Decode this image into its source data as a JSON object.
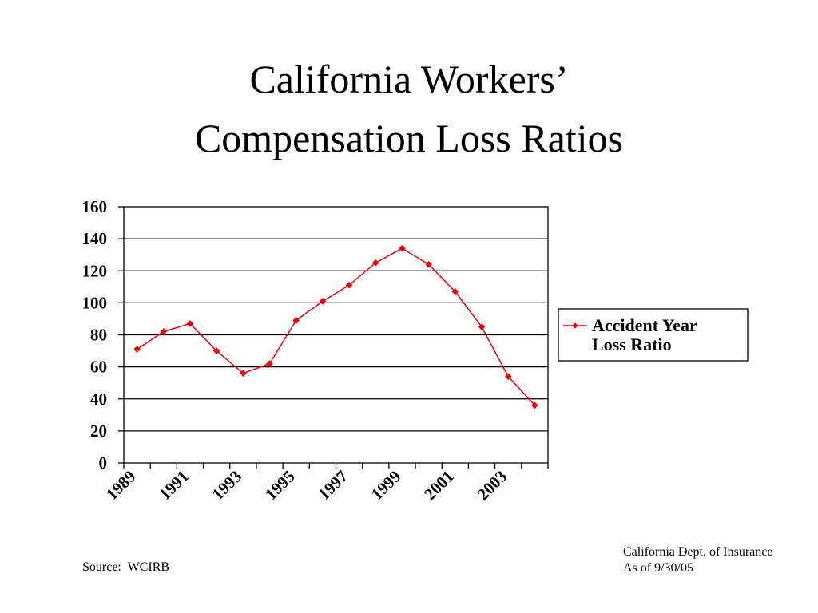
{
  "title_lines": [
    "California Workers’",
    "Compensation Loss Ratios"
  ],
  "chart_data": {
    "type": "line",
    "title": "California Workers’ Compensation Loss Ratios",
    "x": [
      1989,
      1990,
      1991,
      1992,
      1993,
      1994,
      1995,
      1996,
      1997,
      1998,
      1999,
      2000,
      2001,
      2002,
      2003,
      2004
    ],
    "x_tick_labels": [
      "1989",
      "1991",
      "1993",
      "1995",
      "1997",
      "1999",
      "2001",
      "2003"
    ],
    "ylim": [
      0,
      160
    ],
    "y_ticks": [
      0,
      20,
      40,
      60,
      80,
      100,
      120,
      140,
      160
    ],
    "grid": true,
    "legend_position": "right",
    "series": [
      {
        "name": "Accident Year Loss Ratio",
        "legend_lines": [
          "Accident Year",
          "Loss Ratio"
        ],
        "color": "#e8000b",
        "marker": "diamond",
        "values": [
          71,
          82,
          87,
          70,
          56,
          62,
          89,
          101,
          111,
          125,
          134,
          124,
          107,
          85,
          54,
          36
        ]
      }
    ]
  },
  "footer": {
    "source": "Source:  WCIRB",
    "credit_lines": [
      "California Dept. of Insurance",
      "As of 9/30/05"
    ]
  }
}
